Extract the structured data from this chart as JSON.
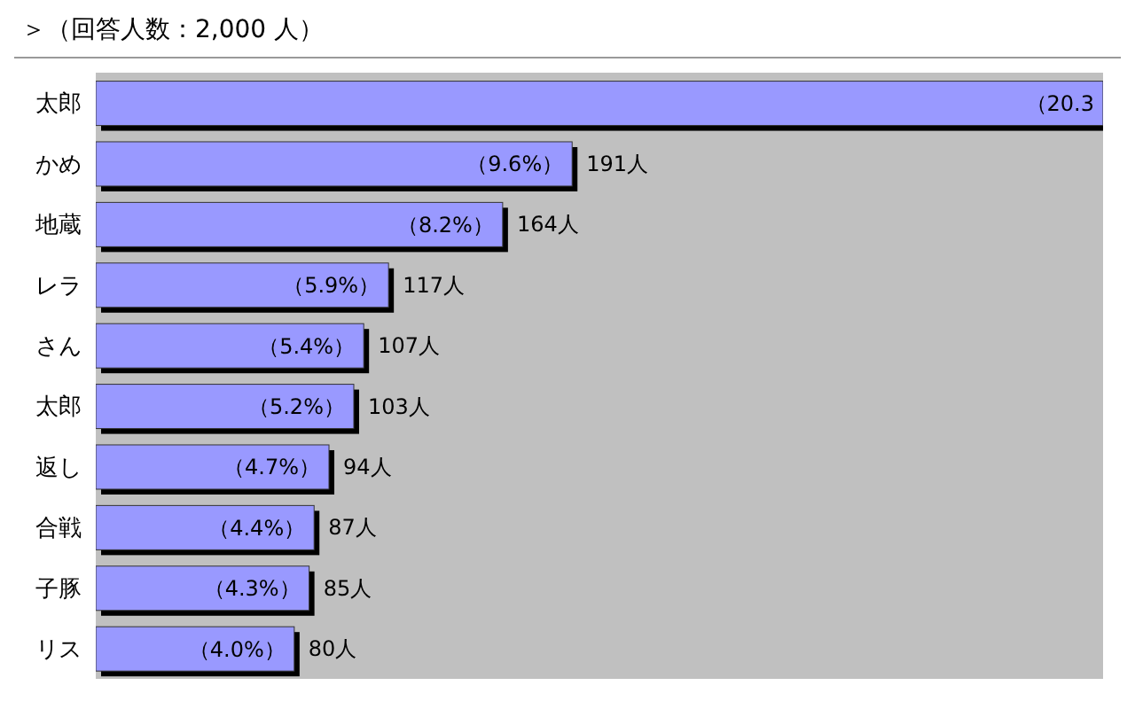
{
  "chart_data": {
    "type": "bar",
    "orientation": "horizontal",
    "title": "＞（回答人数：2,000 人）",
    "categories": [
      "太郎",
      "かめ",
      "地蔵",
      "レラ",
      "さん",
      "太郎",
      "返し",
      "合戦",
      "子豚",
      "リス"
    ],
    "values": [
      20.3,
      9.6,
      8.2,
      5.9,
      5.4,
      5.2,
      4.7,
      4.4,
      4.3,
      4.0
    ],
    "value_labels": [
      "（20.3",
      "（9.6%）",
      "（8.2%）",
      "（5.9%）",
      "（5.4%）",
      "（5.2%）",
      "（4.7%）",
      "（4.4%）",
      "（4.3%）",
      "（4.0%）"
    ],
    "color": "#9999ff",
    "annotations": [
      {
        "text": "191人",
        "x": 9.6,
        "y": "かめ"
      },
      {
        "text": "164人",
        "x": 8.2,
        "y": "地蔵"
      },
      {
        "text": "117人",
        "x": 5.9,
        "y": "レラ"
      },
      {
        "text": "107人",
        "x": 5.4,
        "y": "さん"
      },
      "103人",
      {
        "text": "94人",
        "x": 4.7,
        "y": "返し"
      },
      {
        "text": "87人",
        "x": 4.4,
        "y": "合戦"
      },
      {
        "text": "85人",
        "x": 4.3,
        "y": "子豚"
      },
      {
        "text": "80人",
        "x": 4.0,
        "y": "リス"
      }
    ],
    "xlim": [
      0,
      20.3
    ],
    "legend": false,
    "grid": false
  }
}
